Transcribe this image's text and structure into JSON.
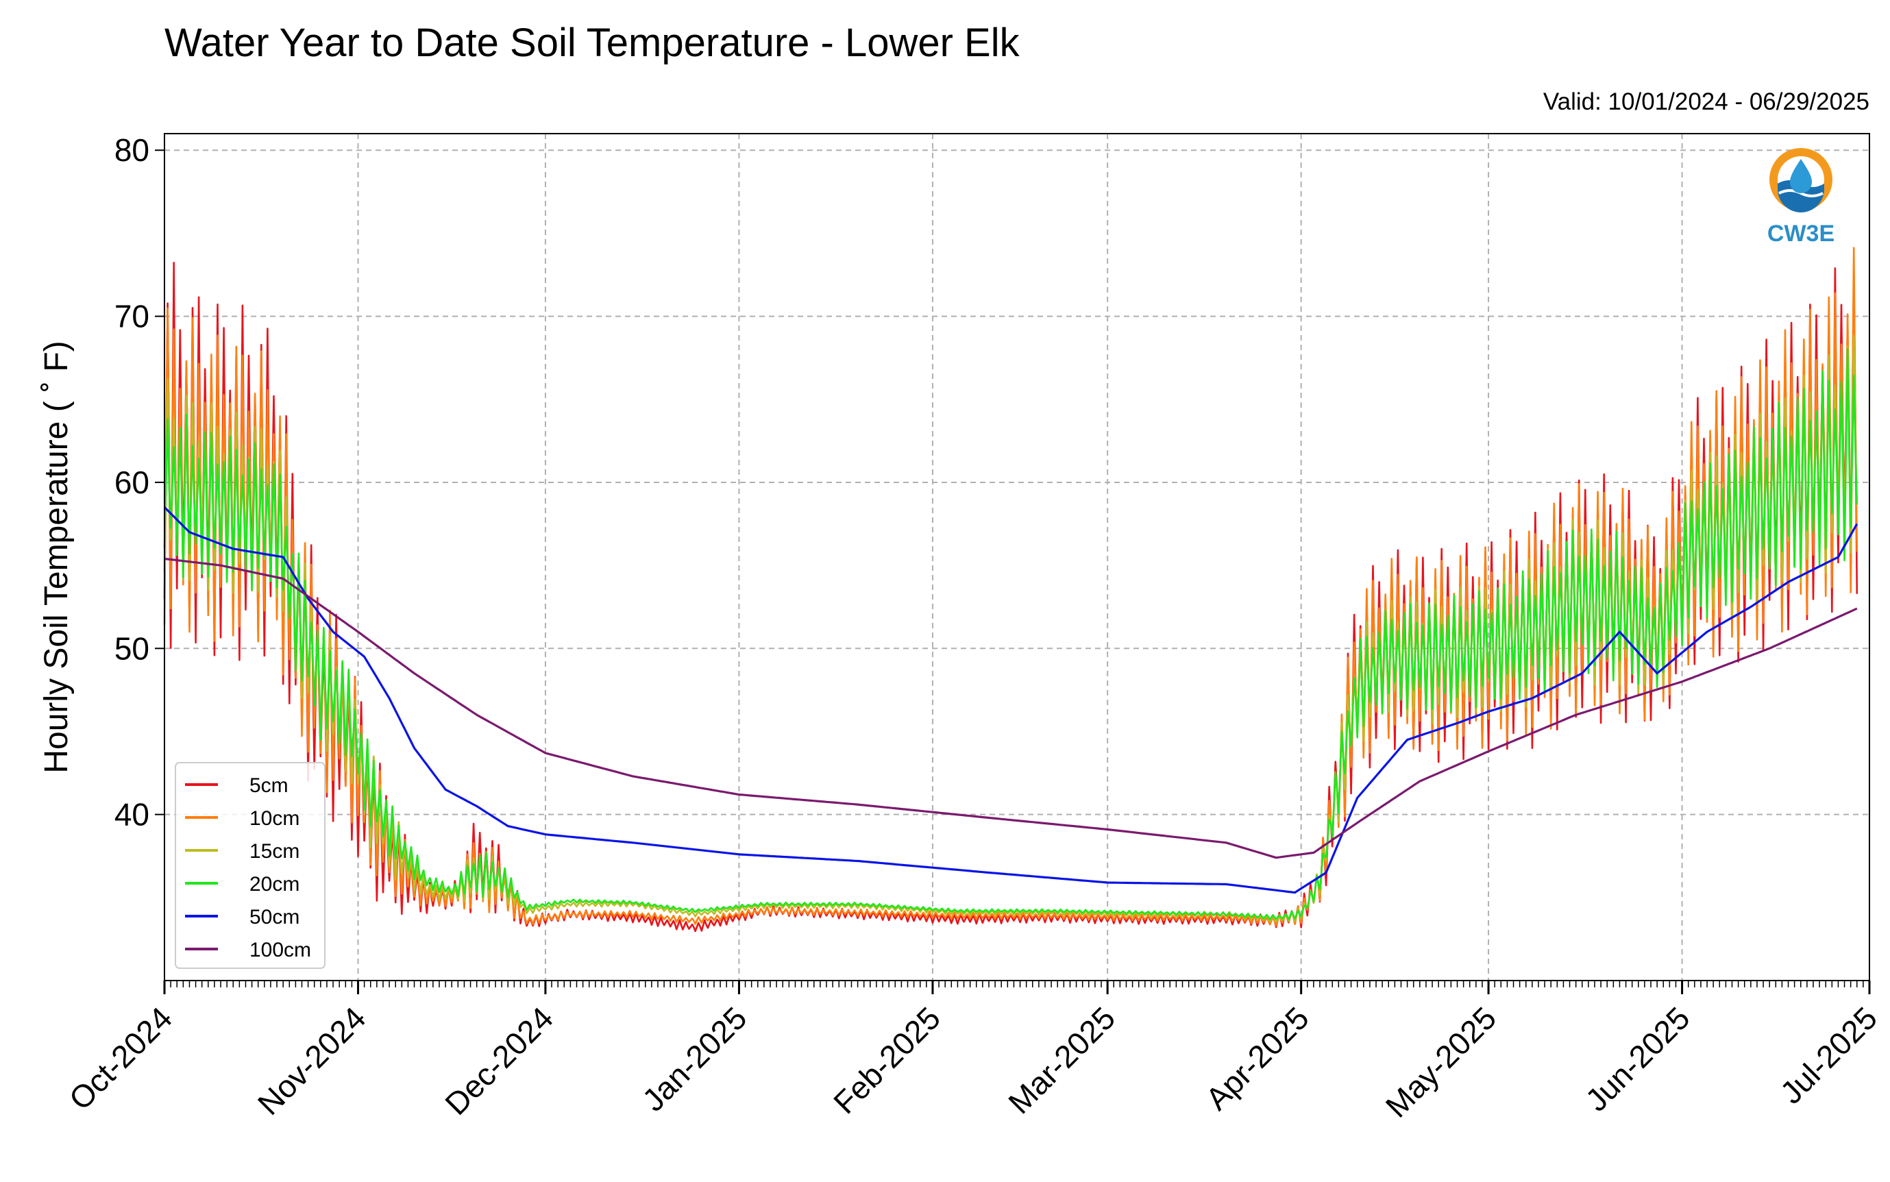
{
  "chart_data": {
    "type": "line",
    "title": "Water Year to Date Soil Temperature - Lower Elk",
    "subtitle": "Valid: 10/01/2024 - 06/29/2025",
    "xlabel": "",
    "ylabel": "Hourly Soil Temperature ( ˚ F)",
    "xlim": [
      "2024-10-01",
      "2025-07-01"
    ],
    "ylim": [
      30,
      81
    ],
    "yticks": [
      40,
      50,
      60,
      70,
      80
    ],
    "xticks": [
      {
        "date": "2024-10-01",
        "label": "Oct-2024"
      },
      {
        "date": "2024-11-01",
        "label": "Nov-2024"
      },
      {
        "date": "2024-12-01",
        "label": "Dec-2024"
      },
      {
        "date": "2025-01-01",
        "label": "Jan-2025"
      },
      {
        "date": "2025-02-01",
        "label": "Feb-2025"
      },
      {
        "date": "2025-03-01",
        "label": "Mar-2025"
      },
      {
        "date": "2025-04-01",
        "label": "Apr-2025"
      },
      {
        "date": "2025-05-01",
        "label": "May-2025"
      },
      {
        "date": "2025-06-01",
        "label": "Jun-2025"
      },
      {
        "date": "2025-07-01",
        "label": "Jul-2025"
      }
    ],
    "grid": true,
    "legend_position": "lower-left",
    "logo_text": "CW3E",
    "series": [
      {
        "name": "5cm",
        "color": "#e8141c",
        "diurnal": true,
        "x": [
          "2024-10-01",
          "2024-10-05",
          "2024-10-10",
          "2024-10-15",
          "2024-10-19",
          "2024-10-22",
          "2024-10-26",
          "2024-10-30",
          "2024-11-03",
          "2024-11-07",
          "2024-11-12",
          "2024-11-16",
          "2024-11-20",
          "2024-11-24",
          "2024-11-28",
          "2024-12-05",
          "2024-12-15",
          "2024-12-25",
          "2025-01-05",
          "2025-01-20",
          "2025-02-05",
          "2025-02-20",
          "2025-03-05",
          "2025-03-20",
          "2025-03-28",
          "2025-04-01",
          "2025-04-04",
          "2025-04-07",
          "2025-04-10",
          "2025-04-15",
          "2025-04-22",
          "2025-04-30",
          "2025-05-08",
          "2025-05-15",
          "2025-05-22",
          "2025-05-28",
          "2025-06-03",
          "2025-06-10",
          "2025-06-17",
          "2025-06-24",
          "2025-06-29"
        ],
        "mean": [
          62,
          61,
          60,
          60,
          59,
          52,
          47,
          45,
          40,
          37,
          35,
          35,
          37,
          36,
          33.5,
          34,
          33.8,
          33.2,
          34.2,
          34,
          33.7,
          33.8,
          33.7,
          33.7,
          33.6,
          34,
          36,
          42,
          48,
          50,
          49.5,
          50,
          51,
          53,
          53,
          51,
          57,
          58,
          60,
          62,
          64
        ],
        "amp": [
          12,
          11,
          11,
          10.5,
          10,
          8,
          7,
          6,
          5,
          3,
          1,
          0.6,
          3,
          2,
          0.4,
          0.3,
          0.3,
          0.3,
          0.3,
          0.3,
          0.3,
          0.3,
          0.3,
          0.3,
          0.4,
          0.8,
          1.5,
          4,
          6,
          6,
          6.5,
          6.5,
          7,
          7.5,
          7.5,
          6,
          8,
          9,
          9.5,
          10,
          11
        ]
      },
      {
        "name": "10cm",
        "color": "#ff7f0e",
        "diurnal": true,
        "x": [
          "2024-10-01",
          "2024-10-05",
          "2024-10-10",
          "2024-10-15",
          "2024-10-19",
          "2024-10-22",
          "2024-10-26",
          "2024-10-30",
          "2024-11-03",
          "2024-11-07",
          "2024-11-12",
          "2024-11-16",
          "2024-11-20",
          "2024-11-24",
          "2024-11-28",
          "2024-12-05",
          "2024-12-15",
          "2024-12-25",
          "2025-01-05",
          "2025-01-20",
          "2025-02-05",
          "2025-02-20",
          "2025-03-05",
          "2025-03-20",
          "2025-03-28",
          "2025-04-01",
          "2025-04-04",
          "2025-04-07",
          "2025-04-10",
          "2025-04-15",
          "2025-04-22",
          "2025-04-30",
          "2025-05-08",
          "2025-05-15",
          "2025-05-22",
          "2025-05-28",
          "2025-06-03",
          "2025-06-10",
          "2025-06-17",
          "2025-06-24",
          "2025-06-29"
        ],
        "mean": [
          61,
          60.5,
          59.5,
          59.5,
          58.5,
          52,
          47.5,
          45.5,
          40.5,
          37.5,
          35.2,
          35,
          36.5,
          35.8,
          33.6,
          34,
          34,
          33.6,
          34.2,
          34.1,
          33.9,
          33.9,
          33.8,
          33.8,
          33.6,
          34,
          36,
          42,
          48,
          50,
          49.5,
          50,
          51,
          53,
          53,
          51,
          57,
          58,
          60,
          62,
          64
        ],
        "amp": [
          10,
          9.5,
          9.5,
          9,
          8.5,
          7,
          6,
          5,
          4,
          2.5,
          0.8,
          0.5,
          2.5,
          1.6,
          0.3,
          0.2,
          0.2,
          0.2,
          0.2,
          0.2,
          0.2,
          0.2,
          0.2,
          0.2,
          0.3,
          0.6,
          1.2,
          3.5,
          5.5,
          5.5,
          6,
          6,
          6.5,
          7,
          7,
          5.5,
          7.5,
          8.5,
          9,
          9.5,
          10.5
        ]
      },
      {
        "name": "15cm",
        "color": "#bcbd22",
        "diurnal": true,
        "x": [
          "2024-10-01",
          "2024-10-05",
          "2024-10-10",
          "2024-10-15",
          "2024-10-19",
          "2024-10-22",
          "2024-10-26",
          "2024-10-30",
          "2024-11-03",
          "2024-11-07",
          "2024-11-12",
          "2024-11-16",
          "2024-11-20",
          "2024-11-24",
          "2024-11-28",
          "2024-12-05",
          "2024-12-15",
          "2024-12-25",
          "2025-01-05",
          "2025-01-20",
          "2025-02-05",
          "2025-02-20",
          "2025-03-05",
          "2025-03-20",
          "2025-03-28",
          "2025-04-01",
          "2025-04-04",
          "2025-04-07",
          "2025-04-10",
          "2025-04-15",
          "2025-04-22",
          "2025-04-30",
          "2025-05-08",
          "2025-05-15",
          "2025-05-22",
          "2025-05-28",
          "2025-06-03",
          "2025-06-10",
          "2025-06-17",
          "2025-06-24",
          "2025-06-29"
        ],
        "mean": [
          60.5,
          59.5,
          59,
          58.5,
          58,
          52.5,
          48,
          46,
          41,
          38,
          35.5,
          35.2,
          36.5,
          36,
          34.2,
          34.6,
          34.6,
          34,
          34.5,
          34.5,
          34.1,
          34.1,
          34,
          34,
          33.7,
          34,
          36,
          42,
          47.5,
          49.5,
          49.5,
          50,
          51,
          53,
          52.5,
          50.5,
          56.5,
          57.5,
          59.5,
          61,
          62.5
        ],
        "amp": [
          6,
          6,
          5.5,
          5.5,
          5,
          4.5,
          4,
          3.5,
          3,
          2,
          0.6,
          0.4,
          1.8,
          1.2,
          0.2,
          0.15,
          0.15,
          0.15,
          0.15,
          0.15,
          0.15,
          0.15,
          0.15,
          0.15,
          0.2,
          0.4,
          0.9,
          2.5,
          3.5,
          3.5,
          4,
          4,
          4.5,
          5,
          5,
          3.5,
          5,
          5.5,
          6,
          6.5,
          7
        ]
      },
      {
        "name": "20cm",
        "color": "#22e61e",
        "diurnal": true,
        "x": [
          "2024-10-01",
          "2024-10-05",
          "2024-10-10",
          "2024-10-15",
          "2024-10-19",
          "2024-10-22",
          "2024-10-26",
          "2024-10-30",
          "2024-11-03",
          "2024-11-07",
          "2024-11-12",
          "2024-11-16",
          "2024-11-20",
          "2024-11-24",
          "2024-11-28",
          "2024-12-05",
          "2024-12-15",
          "2024-12-25",
          "2025-01-05",
          "2025-01-20",
          "2025-02-05",
          "2025-02-20",
          "2025-03-05",
          "2025-03-20",
          "2025-03-28",
          "2025-04-01",
          "2025-04-04",
          "2025-04-07",
          "2025-04-10",
          "2025-04-15",
          "2025-04-22",
          "2025-04-30",
          "2025-05-08",
          "2025-05-15",
          "2025-05-22",
          "2025-05-28",
          "2025-06-03",
          "2025-06-10",
          "2025-06-17",
          "2025-06-24",
          "2025-06-29"
        ],
        "mean": [
          60,
          59,
          58.5,
          58,
          57.5,
          52.5,
          48,
          46.5,
          41.5,
          38.5,
          36,
          35.4,
          36.5,
          36.2,
          34.4,
          34.8,
          34.7,
          34.2,
          34.6,
          34.6,
          34.2,
          34.2,
          34.1,
          34,
          33.8,
          34,
          36,
          42,
          47.5,
          49.5,
          49.5,
          50,
          51,
          53,
          52.5,
          50.5,
          56,
          57.5,
          59.5,
          61,
          62
        ],
        "amp": [
          5,
          5,
          4.5,
          4.5,
          4,
          4,
          3.5,
          3,
          2.5,
          1.5,
          0.5,
          0.3,
          1.5,
          1,
          0.15,
          0.1,
          0.1,
          0.1,
          0.1,
          0.1,
          0.1,
          0.1,
          0.1,
          0.1,
          0.15,
          0.3,
          0.7,
          2,
          3,
          3,
          3.5,
          3.5,
          4,
          4.5,
          4.5,
          3,
          4.5,
          5,
          5.5,
          6,
          6.5
        ]
      },
      {
        "name": "50cm",
        "color": "#0a14e6",
        "diurnal": false,
        "x": [
          "2024-10-01",
          "2024-10-05",
          "2024-10-12",
          "2024-10-20",
          "2024-10-24",
          "2024-10-28",
          "2024-11-02",
          "2024-11-06",
          "2024-11-10",
          "2024-11-15",
          "2024-11-20",
          "2024-11-25",
          "2024-12-01",
          "2024-12-15",
          "2025-01-01",
          "2025-01-20",
          "2025-02-10",
          "2025-03-01",
          "2025-03-20",
          "2025-03-31",
          "2025-04-05",
          "2025-04-10",
          "2025-04-18",
          "2025-04-26",
          "2025-05-01",
          "2025-05-08",
          "2025-05-16",
          "2025-05-22",
          "2025-05-28",
          "2025-06-05",
          "2025-06-12",
          "2025-06-18",
          "2025-06-26",
          "2025-06-29"
        ],
        "x_end": "2025-06-29",
        "y": [
          58.5,
          57,
          56,
          55.5,
          53,
          51,
          49.5,
          47,
          44,
          41.5,
          40.5,
          39.3,
          38.8,
          38.3,
          37.6,
          37.2,
          36.5,
          35.9,
          35.8,
          35.3,
          36.5,
          41,
          44.5,
          45.5,
          46.2,
          47,
          48.5,
          51,
          48.5,
          51,
          52.5,
          54,
          55.5,
          57.5
        ]
      },
      {
        "name": "100cm",
        "color": "#7a1a6e",
        "diurnal": false,
        "x": [
          "2024-10-01",
          "2024-10-10",
          "2024-10-20",
          "2024-11-01",
          "2024-11-10",
          "2024-11-20",
          "2024-12-01",
          "2024-12-15",
          "2025-01-01",
          "2025-01-20",
          "2025-02-10",
          "2025-03-01",
          "2025-03-20",
          "2025-03-28",
          "2025-04-03",
          "2025-04-10",
          "2025-04-20",
          "2025-05-01",
          "2025-05-15",
          "2025-06-01",
          "2025-06-15",
          "2025-06-29"
        ],
        "y": [
          55.4,
          55,
          54.2,
          51,
          48.5,
          46,
          43.7,
          42.3,
          41.2,
          40.6,
          39.8,
          39.1,
          38.3,
          37.4,
          37.7,
          39.5,
          42,
          43.8,
          46,
          48,
          50,
          52.4
        ]
      }
    ]
  }
}
